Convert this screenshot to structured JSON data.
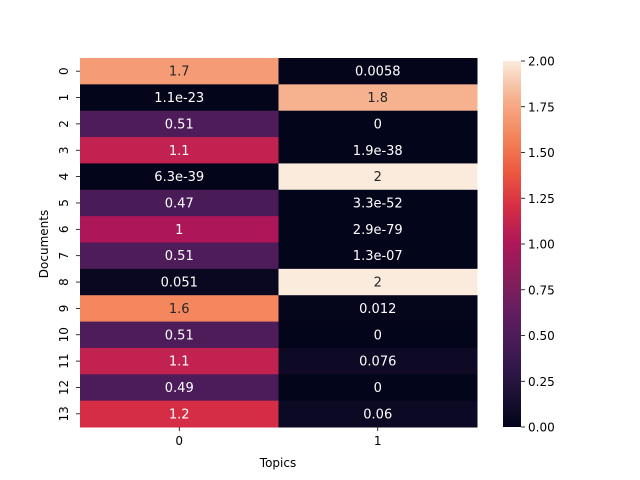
{
  "chart_data": {
    "type": "heatmap",
    "title": "",
    "xlabel": "Topics",
    "ylabel": "Documents",
    "x_categories": [
      "0",
      "1"
    ],
    "y_categories": [
      "0",
      "1",
      "2",
      "3",
      "4",
      "5",
      "6",
      "7",
      "8",
      "9",
      "10",
      "11",
      "12",
      "13"
    ],
    "values": [
      [
        1.7,
        0.0058
      ],
      [
        1.1e-23,
        1.8
      ],
      [
        0.51,
        0
      ],
      [
        1.1,
        1.9e-38
      ],
      [
        6.3e-39,
        2
      ],
      [
        0.47,
        3.3e-52
      ],
      [
        1,
        2.9e-79
      ],
      [
        0.51,
        1.3e-07
      ],
      [
        0.051,
        2
      ],
      [
        1.6,
        0.012
      ],
      [
        0.51,
        0
      ],
      [
        1.1,
        0.076
      ],
      [
        0.49,
        0
      ],
      [
        1.2,
        0.06
      ]
    ],
    "annotations": [
      [
        "1.7",
        "0.0058"
      ],
      [
        "1.1e-23",
        "1.8"
      ],
      [
        "0.51",
        "0"
      ],
      [
        "1.1",
        "1.9e-38"
      ],
      [
        "6.3e-39",
        "2"
      ],
      [
        "0.47",
        "3.3e-52"
      ],
      [
        "1",
        "2.9e-79"
      ],
      [
        "0.51",
        "1.3e-07"
      ],
      [
        "0.051",
        "2"
      ],
      [
        "1.6",
        "0.012"
      ],
      [
        "0.51",
        "0"
      ],
      [
        "1.1",
        "0.076"
      ],
      [
        "0.49",
        "0"
      ],
      [
        "1.2",
        "0.06"
      ]
    ],
    "colormap": "rocket",
    "colorbar": {
      "vmin": 0,
      "vmax": 2,
      "ticks": [
        "0.00",
        "0.25",
        "0.50",
        "0.75",
        "1.00",
        "1.25",
        "1.50",
        "1.75",
        "2.00"
      ]
    }
  }
}
